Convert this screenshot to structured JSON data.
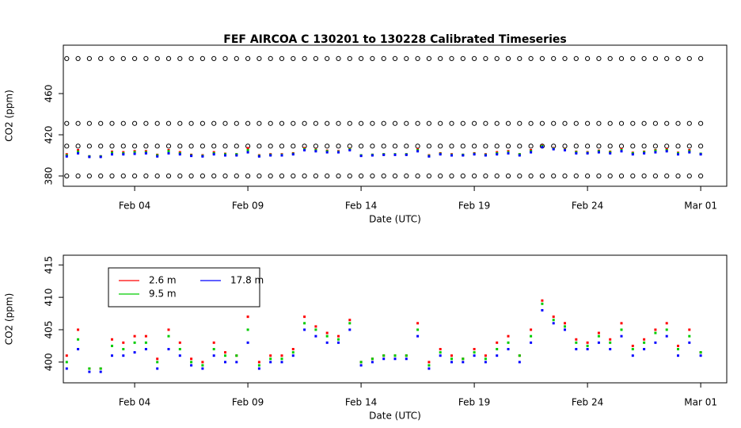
{
  "chart_data": [
    {
      "type": "scatter",
      "title": "FEF   AIRCOA  C    130201  to  130228   Calibrated Timeseries",
      "xlabel": "Date (UTC)",
      "ylabel": "CO2 (ppm)",
      "xlim": [
        0.85,
        30.15
      ],
      "ylim": [
        370,
        507
      ],
      "xticks": [
        {
          "value": 4,
          "label": "Feb 04"
        },
        {
          "value": 9,
          "label": "Feb 09"
        },
        {
          "value": 14,
          "label": "Feb 14"
        },
        {
          "value": 19,
          "label": "Feb 19"
        },
        {
          "value": 24,
          "label": "Feb 24"
        },
        {
          "value": 29,
          "label": "Mar 01"
        }
      ],
      "yticks": [
        380,
        420,
        460
      ],
      "x": [
        1,
        1.5,
        2,
        2.5,
        3,
        3.5,
        4,
        4.5,
        5,
        5.5,
        6,
        6.5,
        7,
        7.5,
        8,
        8.5,
        9,
        9.5,
        10,
        10.5,
        11,
        11.5,
        12,
        12.5,
        13,
        13.5,
        14,
        14.5,
        15,
        15.5,
        16,
        16.5,
        17,
        17.5,
        18,
        18.5,
        19,
        19.5,
        20,
        20.5,
        21,
        21.5,
        22,
        22.5,
        23,
        23.5,
        24,
        24.5,
        25,
        25.5,
        26,
        26.5,
        27,
        27.5,
        28,
        28.5,
        29
      ],
      "series": [
        {
          "color": "#000000",
          "marker": "circle",
          "values": [
            494,
            494,
            494,
            494,
            494,
            494,
            494,
            494,
            494,
            494,
            494,
            494,
            494,
            494,
            494,
            494,
            494,
            494,
            494,
            494,
            494,
            494,
            494,
            494,
            494,
            494,
            494,
            494,
            494,
            494,
            494,
            494,
            494,
            494,
            494,
            494,
            494,
            494,
            494,
            494,
            494,
            494,
            494,
            494,
            494,
            494,
            494,
            494,
            494,
            494,
            494,
            494,
            494,
            494,
            494,
            494,
            494
          ]
        },
        {
          "color": "#000000",
          "marker": "circle",
          "values": [
            431,
            431,
            431,
            431,
            431,
            431,
            431,
            431,
            431,
            431,
            431,
            431,
            431,
            431,
            431,
            431,
            431,
            431,
            431,
            431,
            431,
            431,
            431,
            431,
            431,
            431,
            431,
            431,
            431,
            431,
            431,
            431,
            431,
            431,
            431,
            431,
            431,
            431,
            431,
            431,
            431,
            431,
            431,
            431,
            431,
            431,
            431,
            431,
            431,
            431,
            431,
            431,
            431,
            431,
            431,
            431,
            431
          ]
        },
        {
          "color": "#000000",
          "marker": "circle",
          "values": [
            409,
            409,
            409,
            409,
            409,
            409,
            409,
            409,
            409,
            409,
            409,
            409,
            409,
            409,
            409,
            409,
            409,
            409,
            409,
            409,
            409,
            409,
            409,
            409,
            409,
            409,
            409,
            409,
            409,
            409,
            409,
            409,
            409,
            409,
            409,
            409,
            409,
            409,
            409,
            409,
            409,
            409,
            409,
            409,
            409,
            409,
            409,
            409,
            409,
            409,
            409,
            409,
            409,
            409,
            409,
            409,
            409
          ]
        },
        {
          "color": "#000000",
          "marker": "circle",
          "values": [
            380,
            380,
            380,
            380,
            380,
            380,
            380,
            380,
            380,
            380,
            380,
            380,
            380,
            380,
            380,
            380,
            380,
            380,
            380,
            380,
            380,
            380,
            380,
            380,
            380,
            380,
            380,
            380,
            380,
            380,
            380,
            380,
            380,
            380,
            380,
            380,
            380,
            380,
            380,
            380,
            380,
            380,
            380,
            380,
            380,
            380,
            380,
            380,
            380,
            380,
            380,
            380,
            380,
            380,
            380,
            380,
            380
          ]
        },
        {
          "color": "#ff0000",
          "marker": "square",
          "values": [
            401,
            405,
            399,
            399,
            403.5,
            403,
            404,
            404,
            400.5,
            405,
            403,
            400.5,
            400,
            403,
            401.5,
            401,
            407,
            400,
            401,
            401,
            402,
            407,
            405.5,
            404.5,
            404,
            406.5,
            400,
            400.5,
            401,
            401,
            401,
            406,
            400,
            402,
            401,
            400.5,
            402,
            401,
            403,
            404,
            401,
            405,
            409.5,
            407,
            406,
            403.5,
            403,
            404.5,
            403.5,
            406,
            402.5,
            403.5,
            405,
            406,
            402.5,
            405,
            401.5
          ]
        },
        {
          "color": "#00cc00",
          "marker": "square",
          "values": [
            400,
            403.5,
            399,
            399,
            402.5,
            402,
            403,
            403,
            400,
            404,
            402,
            400,
            399.5,
            402,
            401,
            401,
            405,
            399.5,
            400.5,
            400.5,
            401.5,
            406,
            405,
            404,
            403.5,
            406,
            400,
            400.5,
            401,
            401,
            401,
            405,
            399.5,
            401.5,
            400.5,
            400.5,
            401.5,
            400.5,
            402,
            403,
            401,
            404,
            409,
            406.5,
            405.5,
            403,
            402.5,
            404,
            403,
            405,
            402,
            403,
            404.5,
            405,
            402,
            404,
            401.5
          ]
        },
        {
          "color": "#0000ff",
          "marker": "square",
          "values": [
            399,
            402,
            398.5,
            398.5,
            401,
            401,
            401.5,
            402,
            399,
            402,
            401,
            399.5,
            399,
            401,
            400,
            400,
            403,
            399,
            400,
            400,
            401,
            405,
            404,
            403,
            403,
            405,
            399.5,
            400,
            400.5,
            400.5,
            400.5,
            404,
            399,
            401,
            400,
            400,
            401,
            400,
            401,
            402,
            400,
            403,
            408,
            406,
            405,
            402,
            402,
            403,
            402,
            404,
            401,
            402,
            403,
            404,
            401,
            403,
            401
          ]
        }
      ]
    },
    {
      "type": "scatter",
      "xlabel": "Date (UTC)",
      "ylabel": "CO2 (ppm)",
      "legend": "top-left",
      "xlim": [
        0.85,
        30.15
      ],
      "ylim": [
        396.8,
        416.5
      ],
      "xticks": [
        {
          "value": 4,
          "label": "Feb 04"
        },
        {
          "value": 9,
          "label": "Feb 09"
        },
        {
          "value": 14,
          "label": "Feb 14"
        },
        {
          "value": 19,
          "label": "Feb 19"
        },
        {
          "value": 24,
          "label": "Feb 24"
        },
        {
          "value": 29,
          "label": "Mar 01"
        }
      ],
      "yticks": [
        400,
        405,
        410,
        415
      ],
      "x": [
        1,
        1.5,
        2,
        2.5,
        3,
        3.5,
        4,
        4.5,
        5,
        5.5,
        6,
        6.5,
        7,
        7.5,
        8,
        8.5,
        9,
        9.5,
        10,
        10.5,
        11,
        11.5,
        12,
        12.5,
        13,
        13.5,
        14,
        14.5,
        15,
        15.5,
        16,
        16.5,
        17,
        17.5,
        18,
        18.5,
        19,
        19.5,
        20,
        20.5,
        21,
        21.5,
        22,
        22.5,
        23,
        23.5,
        24,
        24.5,
        25,
        25.5,
        26,
        26.5,
        27,
        27.5,
        28,
        28.5,
        29
      ],
      "series": [
        {
          "name": "2.6 m",
          "color": "#ff0000",
          "marker": "square",
          "values": [
            401,
            405,
            399,
            399,
            403.5,
            403,
            404,
            404,
            400.5,
            405,
            403,
            400.5,
            400,
            403,
            401.5,
            401,
            407,
            400,
            401,
            401,
            402,
            407,
            405.5,
            404.5,
            404,
            406.5,
            400,
            400.5,
            401,
            401,
            401,
            406,
            400,
            402,
            401,
            400.5,
            402,
            401,
            403,
            404,
            401,
            405,
            409.5,
            407,
            406,
            403.5,
            403,
            404.5,
            403.5,
            406,
            402.5,
            403.5,
            405,
            406,
            402.5,
            405,
            401.5
          ]
        },
        {
          "name": "9.5 m",
          "color": "#00cc00",
          "marker": "square",
          "values": [
            400,
            403.5,
            399,
            399,
            402.5,
            402,
            403,
            403,
            400,
            404,
            402,
            400,
            399.5,
            402,
            401,
            401,
            405,
            399.5,
            400.5,
            400.5,
            401.5,
            406,
            405,
            404,
            403.5,
            406,
            400,
            400.5,
            401,
            401,
            401,
            405,
            399.5,
            401.5,
            400.5,
            400.5,
            401.5,
            400.5,
            402,
            403,
            401,
            404,
            409,
            406.5,
            405.5,
            403,
            402.5,
            404,
            403,
            405,
            402,
            403,
            404.5,
            405,
            402,
            404,
            401.5
          ]
        },
        {
          "name": "17.8 m",
          "color": "#0000ff",
          "marker": "square",
          "values": [
            399,
            402,
            398.5,
            398.5,
            401,
            401,
            401.5,
            402,
            399,
            402,
            401,
            399.5,
            399,
            401,
            400,
            400,
            403,
            399,
            400,
            400,
            401,
            405,
            404,
            403,
            403,
            405,
            399.5,
            400,
            400.5,
            400.5,
            400.5,
            404,
            399,
            401,
            400,
            400,
            401,
            400,
            401,
            402,
            400,
            403,
            408,
            406,
            405,
            402,
            402,
            403,
            402,
            404,
            401,
            402,
            403,
            404,
            401,
            403,
            401
          ]
        }
      ]
    }
  ]
}
